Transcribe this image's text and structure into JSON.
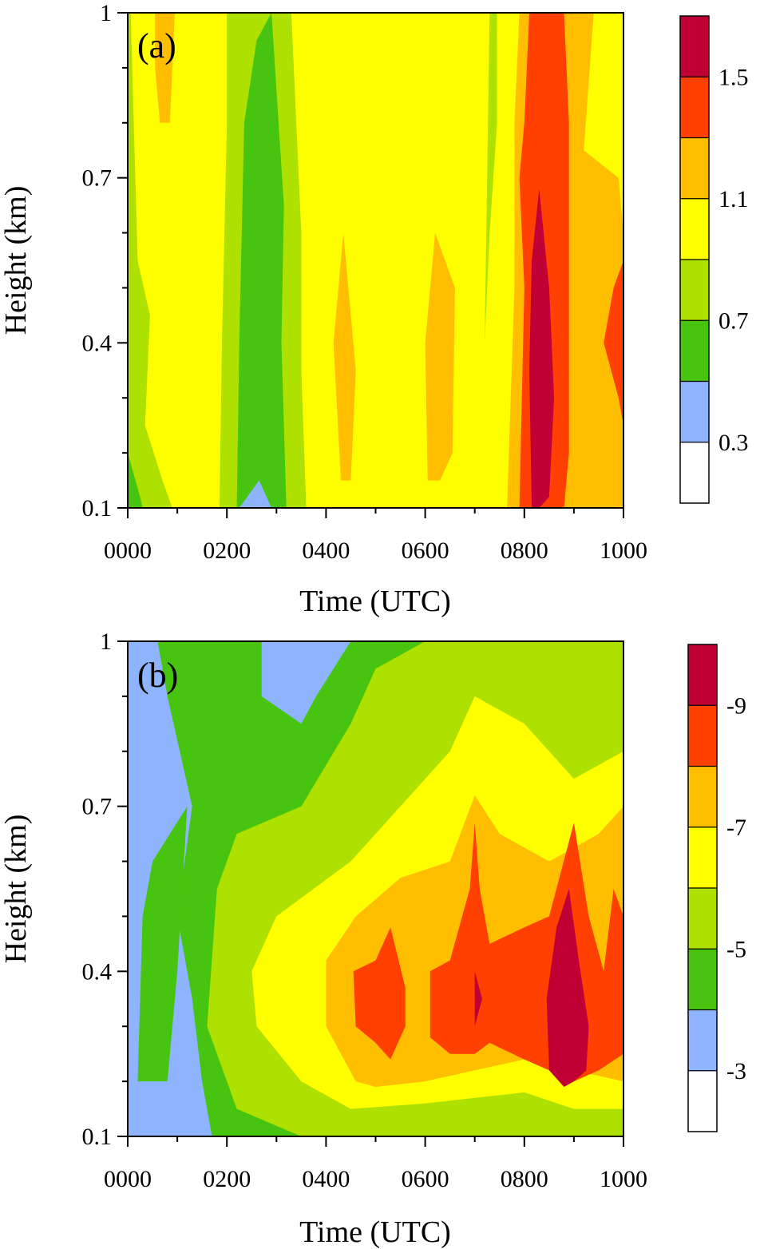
{
  "chart_data": [
    {
      "type": "heatmap",
      "panel_label": "(a)",
      "xlabel": "Time (UTC)",
      "ylabel": "Height (km)",
      "x_tick_labels": [
        "0000",
        "0200",
        "0400",
        "0600",
        "0800",
        "1000"
      ],
      "y_tick_labels": [
        "0.1",
        "0.4",
        "0.7",
        "1"
      ],
      "xlim": [
        0,
        10
      ],
      "ylim": [
        0.1,
        1.0
      ],
      "colorbar": {
        "labels": [
          "0.3",
          "0.7",
          "1.1",
          "1.5"
        ],
        "colors": [
          "#ffffff",
          "#8fb4ff",
          "#46c40f",
          "#aee000",
          "#ffff00",
          "#ffbf00",
          "#ff4000",
          "#c00035"
        ]
      },
      "fields": {
        "background": "#ffff00",
        "regions": [
          {
            "level_color": "#aee000",
            "name": "light-green-band-left",
            "points": [
              [
                0.0,
                0.1
              ],
              [
                0.0,
                1.0
              ],
              [
                0.06,
                1.0
              ],
              [
                0.2,
                0.55
              ],
              [
                0.45,
                0.45
              ],
              [
                0.35,
                0.25
              ],
              [
                0.7,
                0.15
              ],
              [
                0.9,
                0.1
              ]
            ]
          },
          {
            "level_color": "#aee000",
            "name": "light-green-band-0230",
            "points": [
              [
                1.85,
                0.1
              ],
              [
                1.9,
                0.4
              ],
              [
                2.0,
                0.8
              ],
              [
                2.0,
                1.0
              ],
              [
                3.3,
                1.0
              ],
              [
                3.5,
                0.6
              ],
              [
                3.5,
                0.35
              ],
              [
                3.6,
                0.1
              ]
            ]
          },
          {
            "level_color": "#46c40f",
            "name": "green-band-0230",
            "points": [
              [
                2.2,
                0.1
              ],
              [
                2.25,
                0.4
              ],
              [
                2.35,
                0.8
              ],
              [
                2.6,
                0.95
              ],
              [
                2.9,
                1.0
              ],
              [
                3.15,
                0.65
              ],
              [
                3.1,
                0.4
              ],
              [
                3.2,
                0.1
              ]
            ]
          },
          {
            "level_color": "#46c40f",
            "name": "green-strip-left",
            "points": [
              [
                0.0,
                0.1
              ],
              [
                0.0,
                0.2
              ],
              [
                0.25,
                0.12
              ],
              [
                0.3,
                0.1
              ]
            ]
          },
          {
            "level_color": "#8fb4ff",
            "name": "blue-patch",
            "points": [
              [
                2.25,
                0.1
              ],
              [
                2.65,
                0.15
              ],
              [
                2.9,
                0.1
              ]
            ]
          },
          {
            "level_color": "#aee000",
            "name": "light-green-0715",
            "points": [
              [
                7.2,
                0.4
              ],
              [
                7.25,
                0.7
              ],
              [
                7.3,
                1.0
              ],
              [
                7.45,
                1.0
              ],
              [
                7.45,
                0.8
              ],
              [
                7.3,
                0.6
              ]
            ]
          },
          {
            "level_color": "#ffbf00",
            "name": "orange-0100",
            "points": [
              [
                0.55,
                0.9
              ],
              [
                0.65,
                0.8
              ],
              [
                0.85,
                0.8
              ],
              [
                0.95,
                1.0
              ],
              [
                0.55,
                1.0
              ]
            ]
          },
          {
            "level_color": "#ffbf00",
            "name": "orange-0430",
            "points": [
              [
                4.3,
                0.15
              ],
              [
                4.15,
                0.4
              ],
              [
                4.35,
                0.6
              ],
              [
                4.6,
                0.35
              ],
              [
                4.5,
                0.15
              ]
            ]
          },
          {
            "level_color": "#ffbf00",
            "name": "orange-0630",
            "points": [
              [
                6.05,
                0.15
              ],
              [
                6.0,
                0.4
              ],
              [
                6.2,
                0.6
              ],
              [
                6.6,
                0.5
              ],
              [
                6.55,
                0.2
              ],
              [
                6.3,
                0.15
              ]
            ]
          },
          {
            "level_color": "#ffbf00",
            "name": "orange-0830",
            "points": [
              [
                7.65,
                0.1
              ],
              [
                7.8,
                0.5
              ],
              [
                7.8,
                0.8
              ],
              [
                7.9,
                1.0
              ],
              [
                9.4,
                1.0
              ],
              [
                9.2,
                0.75
              ],
              [
                9.9,
                0.7
              ],
              [
                10.0,
                0.6
              ],
              [
                10.0,
                0.1
              ]
            ]
          },
          {
            "level_color": "#ff4000",
            "name": "red-0830",
            "points": [
              [
                7.9,
                0.1
              ],
              [
                8.0,
                0.5
              ],
              [
                7.9,
                0.7
              ],
              [
                8.0,
                0.8
              ],
              [
                8.1,
                1.0
              ],
              [
                8.8,
                1.0
              ],
              [
                8.9,
                0.8
              ],
              [
                8.9,
                0.5
              ],
              [
                8.9,
                0.2
              ],
              [
                8.8,
                0.1
              ]
            ]
          },
          {
            "level_color": "#ff4000",
            "name": "red-0950",
            "points": [
              [
                9.6,
                0.4
              ],
              [
                9.9,
                0.3
              ],
              [
                10.0,
                0.25
              ],
              [
                10.0,
                0.55
              ],
              [
                9.8,
                0.5
              ]
            ]
          },
          {
            "level_color": "#c00035",
            "name": "crimson-0815",
            "points": [
              [
                8.15,
                0.1
              ],
              [
                8.1,
                0.35
              ],
              [
                8.15,
                0.55
              ],
              [
                8.3,
                0.68
              ],
              [
                8.5,
                0.5
              ],
              [
                8.6,
                0.3
              ],
              [
                8.5,
                0.12
              ],
              [
                8.3,
                0.1
              ]
            ]
          }
        ]
      }
    },
    {
      "type": "heatmap",
      "panel_label": "(b)",
      "xlabel": "Time (UTC)",
      "ylabel": "Height (km)",
      "x_tick_labels": [
        "0000",
        "0200",
        "0400",
        "0600",
        "0800",
        "1000"
      ],
      "y_tick_labels": [
        "0.1",
        "0.4",
        "0.7",
        "1"
      ],
      "xlim": [
        0,
        10
      ],
      "ylim": [
        0.1,
        1.0
      ],
      "colorbar": {
        "labels": [
          "-3",
          "-5",
          "-7",
          "-9"
        ],
        "colors": [
          "#ffffff",
          "#8fb4ff",
          "#46c40f",
          "#aee000",
          "#ffff00",
          "#ffbf00",
          "#ff4000",
          "#c00035"
        ]
      },
      "fields": {
        "background": "#8fb4ff",
        "regions": [
          {
            "level_color": "#46c40f",
            "name": "green-main",
            "points": [
              [
                1.7,
                0.1
              ],
              [
                1.5,
                0.2
              ],
              [
                1.3,
                0.35
              ],
              [
                1.0,
                0.5
              ],
              [
                1.3,
                0.7
              ],
              [
                0.8,
                0.9
              ],
              [
                0.6,
                1.0
              ],
              [
                10.0,
                1.0
              ],
              [
                10.0,
                0.1
              ]
            ]
          },
          {
            "level_color": "#46c40f",
            "name": "green-left",
            "points": [
              [
                0.2,
                0.2
              ],
              [
                0.3,
                0.5
              ],
              [
                0.5,
                0.6
              ],
              [
                1.2,
                0.7
              ],
              [
                1.0,
                0.4
              ],
              [
                0.8,
                0.2
              ]
            ]
          },
          {
            "level_color": "#8fb4ff",
            "name": "blue-top",
            "points": [
              [
                2.7,
                1.0
              ],
              [
                2.7,
                0.9
              ],
              [
                3.5,
                0.85
              ],
              [
                3.8,
                0.9
              ],
              [
                4.5,
                1.0
              ]
            ]
          },
          {
            "level_color": "#aee000",
            "name": "light-green",
            "points": [
              [
                3.5,
                0.1
              ],
              [
                2.2,
                0.15
              ],
              [
                1.6,
                0.3
              ],
              [
                1.8,
                0.55
              ],
              [
                2.2,
                0.65
              ],
              [
                3.5,
                0.7
              ],
              [
                4.5,
                0.85
              ],
              [
                5.0,
                0.95
              ],
              [
                6.0,
                1.0
              ],
              [
                10.0,
                1.0
              ],
              [
                10.0,
                0.1
              ]
            ]
          },
          {
            "level_color": "#ffff00",
            "name": "yellow",
            "points": [
              [
                4.5,
                0.15
              ],
              [
                3.5,
                0.2
              ],
              [
                2.6,
                0.3
              ],
              [
                2.5,
                0.4
              ],
              [
                3.0,
                0.5
              ],
              [
                4.5,
                0.6
              ],
              [
                5.5,
                0.7
              ],
              [
                6.5,
                0.8
              ],
              [
                7.0,
                0.9
              ],
              [
                8.0,
                0.85
              ],
              [
                9.0,
                0.75
              ],
              [
                10.0,
                0.8
              ],
              [
                10.0,
                0.15
              ],
              [
                9.0,
                0.15
              ],
              [
                8.0,
                0.18
              ],
              [
                7.0,
                0.17
              ],
              [
                6.0,
                0.16
              ]
            ]
          },
          {
            "level_color": "#ffbf00",
            "name": "orange",
            "points": [
              [
                4.6,
                0.2
              ],
              [
                4.0,
                0.3
              ],
              [
                4.0,
                0.42
              ],
              [
                4.6,
                0.5
              ],
              [
                5.5,
                0.57
              ],
              [
                6.5,
                0.6
              ],
              [
                7.0,
                0.72
              ],
              [
                7.5,
                0.65
              ],
              [
                8.5,
                0.6
              ],
              [
                9.5,
                0.65
              ],
              [
                10.0,
                0.7
              ],
              [
                10.0,
                0.2
              ],
              [
                9.0,
                0.22
              ],
              [
                8.0,
                0.24
              ],
              [
                7.0,
                0.22
              ],
              [
                6.0,
                0.2
              ],
              [
                5.0,
                0.19
              ]
            ]
          },
          {
            "level_color": "#ff4000",
            "name": "red-0500",
            "points": [
              [
                4.6,
                0.3
              ],
              [
                4.55,
                0.4
              ],
              [
                5.0,
                0.42
              ],
              [
                5.3,
                0.48
              ],
              [
                5.6,
                0.37
              ],
              [
                5.6,
                0.3
              ],
              [
                5.3,
                0.24
              ],
              [
                5.0,
                0.27
              ]
            ]
          },
          {
            "level_color": "#ff4000",
            "name": "red-0700",
            "points": [
              [
                6.1,
                0.28
              ],
              [
                6.1,
                0.4
              ],
              [
                6.5,
                0.42
              ],
              [
                6.9,
                0.55
              ],
              [
                7.0,
                0.67
              ],
              [
                7.1,
                0.55
              ],
              [
                7.3,
                0.45
              ],
              [
                8.0,
                0.48
              ],
              [
                8.5,
                0.5
              ],
              [
                9.0,
                0.67
              ],
              [
                9.3,
                0.5
              ],
              [
                9.6,
                0.4
              ],
              [
                9.8,
                0.55
              ],
              [
                10.0,
                0.5
              ],
              [
                10.0,
                0.25
              ],
              [
                9.5,
                0.22
              ],
              [
                9.0,
                0.2
              ],
              [
                8.5,
                0.22
              ],
              [
                8.0,
                0.24
              ],
              [
                7.3,
                0.27
              ],
              [
                7.0,
                0.25
              ],
              [
                6.5,
                0.25
              ]
            ]
          },
          {
            "level_color": "#c00035",
            "name": "crimson-0900",
            "points": [
              [
                8.5,
                0.22
              ],
              [
                8.45,
                0.35
              ],
              [
                8.65,
                0.48
              ],
              [
                8.9,
                0.55
              ],
              [
                9.1,
                0.42
              ],
              [
                9.3,
                0.3
              ],
              [
                9.25,
                0.22
              ],
              [
                9.0,
                0.2
              ],
              [
                8.8,
                0.19
              ]
            ]
          },
          {
            "level_color": "#c00035",
            "name": "crimson-0700-spot",
            "points": [
              [
                7.0,
                0.3
              ],
              [
                7.0,
                0.4
              ],
              [
                7.15,
                0.35
              ]
            ]
          }
        ]
      }
    }
  ]
}
